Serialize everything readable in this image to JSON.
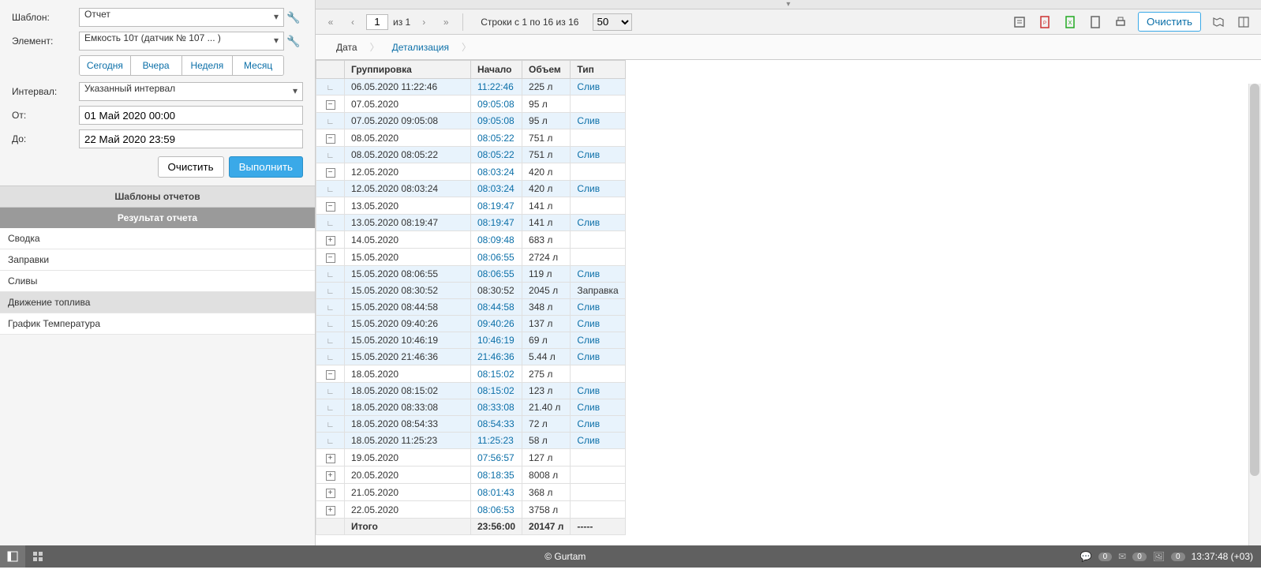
{
  "form": {
    "template_label": "Шаблон:",
    "template_value": "Отчет",
    "element_label": "Элемент:",
    "element_value": "Емкость 10т (датчик № 107 ... )",
    "quick_today": "Сегодня",
    "quick_yesterday": "Вчера",
    "quick_week": "Неделя",
    "quick_month": "Месяц",
    "interval_label": "Интервал:",
    "interval_value": "Указанный интервал",
    "from_label": "От:",
    "from_value": "01 Май 2020 00:00",
    "to_label": "До:",
    "to_value": "22 Май 2020 23:59",
    "clear": "Очистить",
    "execute": "Выполнить"
  },
  "sections": {
    "templates": "Шаблоны отчетов",
    "result": "Результат отчета"
  },
  "result_items": [
    {
      "label": "Сводка"
    },
    {
      "label": "Заправки"
    },
    {
      "label": "Сливы"
    },
    {
      "label": "Движение топлива"
    },
    {
      "label": "График Температура"
    }
  ],
  "toolbar": {
    "page": "1",
    "of": "из 1",
    "rows_info": "Строки с 1 по 16 из 16",
    "per_page": "50",
    "clear": "Очистить"
  },
  "tabs": {
    "date": "Дата",
    "detail": "Детализация"
  },
  "table": {
    "headers": {
      "group": "Группировка",
      "start": "Начало",
      "volume": "Объем",
      "type": "Тип"
    },
    "rows": [
      {
        "tree": "leaf",
        "h": true,
        "group": "06.05.2020 11:22:46",
        "start": "11:22:46",
        "link": true,
        "vol": "225 л",
        "type": "Слив",
        "tlink": true
      },
      {
        "tree": "minus",
        "h": false,
        "group": "07.05.2020",
        "start": "09:05:08",
        "link": true,
        "vol": "95 л",
        "type": "",
        "tlink": false
      },
      {
        "tree": "leaf",
        "h": true,
        "group": "07.05.2020 09:05:08",
        "start": "09:05:08",
        "link": true,
        "vol": "95 л",
        "type": "Слив",
        "tlink": true
      },
      {
        "tree": "minus",
        "h": false,
        "group": "08.05.2020",
        "start": "08:05:22",
        "link": true,
        "vol": "751 л",
        "type": "",
        "tlink": false
      },
      {
        "tree": "leaf",
        "h": true,
        "group": "08.05.2020 08:05:22",
        "start": "08:05:22",
        "link": true,
        "vol": "751 л",
        "type": "Слив",
        "tlink": true
      },
      {
        "tree": "minus",
        "h": false,
        "group": "12.05.2020",
        "start": "08:03:24",
        "link": true,
        "vol": "420 л",
        "type": "",
        "tlink": false
      },
      {
        "tree": "leaf",
        "h": true,
        "group": "12.05.2020 08:03:24",
        "start": "08:03:24",
        "link": true,
        "vol": "420 л",
        "type": "Слив",
        "tlink": true
      },
      {
        "tree": "minus",
        "h": false,
        "group": "13.05.2020",
        "start": "08:19:47",
        "link": true,
        "vol": "141 л",
        "type": "",
        "tlink": false
      },
      {
        "tree": "leaf",
        "h": true,
        "group": "13.05.2020 08:19:47",
        "start": "08:19:47",
        "link": true,
        "vol": "141 л",
        "type": "Слив",
        "tlink": true
      },
      {
        "tree": "plus",
        "h": false,
        "group": "14.05.2020",
        "start": "08:09:48",
        "link": true,
        "vol": "683 л",
        "type": "",
        "tlink": false
      },
      {
        "tree": "minus",
        "h": false,
        "group": "15.05.2020",
        "start": "08:06:55",
        "link": true,
        "vol": "2724 л",
        "type": "",
        "tlink": false
      },
      {
        "tree": "leaf",
        "h": true,
        "group": "15.05.2020 08:06:55",
        "start": "08:06:55",
        "link": true,
        "vol": "119 л",
        "type": "Слив",
        "tlink": true
      },
      {
        "tree": "leaf",
        "h": true,
        "group": "15.05.2020 08:30:52",
        "start": "08:30:52",
        "link": false,
        "vol": "2045 л",
        "type": "Заправка",
        "tlink": false
      },
      {
        "tree": "leaf",
        "h": true,
        "group": "15.05.2020 08:44:58",
        "start": "08:44:58",
        "link": true,
        "vol": "348 л",
        "type": "Слив",
        "tlink": true
      },
      {
        "tree": "leaf",
        "h": true,
        "group": "15.05.2020 09:40:26",
        "start": "09:40:26",
        "link": true,
        "vol": "137 л",
        "type": "Слив",
        "tlink": true
      },
      {
        "tree": "leaf",
        "h": true,
        "group": "15.05.2020 10:46:19",
        "start": "10:46:19",
        "link": true,
        "vol": "69 л",
        "type": "Слив",
        "tlink": true
      },
      {
        "tree": "leaf",
        "h": true,
        "group": "15.05.2020 21:46:36",
        "start": "21:46:36",
        "link": true,
        "vol": "5.44 л",
        "type": "Слив",
        "tlink": true
      },
      {
        "tree": "minus",
        "h": false,
        "group": "18.05.2020",
        "start": "08:15:02",
        "link": true,
        "vol": "275 л",
        "type": "",
        "tlink": false
      },
      {
        "tree": "leaf",
        "h": true,
        "group": "18.05.2020 08:15:02",
        "start": "08:15:02",
        "link": true,
        "vol": "123 л",
        "type": "Слив",
        "tlink": true
      },
      {
        "tree": "leaf",
        "h": true,
        "group": "18.05.2020 08:33:08",
        "start": "08:33:08",
        "link": true,
        "vol": "21.40 л",
        "type": "Слив",
        "tlink": true
      },
      {
        "tree": "leaf",
        "h": true,
        "group": "18.05.2020 08:54:33",
        "start": "08:54:33",
        "link": true,
        "vol": "72 л",
        "type": "Слив",
        "tlink": true
      },
      {
        "tree": "leaf",
        "h": true,
        "group": "18.05.2020 11:25:23",
        "start": "11:25:23",
        "link": true,
        "vol": "58 л",
        "type": "Слив",
        "tlink": true
      },
      {
        "tree": "plus",
        "h": false,
        "group": "19.05.2020",
        "start": "07:56:57",
        "link": true,
        "vol": "127 л",
        "type": "",
        "tlink": false
      },
      {
        "tree": "plus",
        "h": false,
        "group": "20.05.2020",
        "start": "08:18:35",
        "link": true,
        "vol": "8008 л",
        "type": "",
        "tlink": false
      },
      {
        "tree": "plus",
        "h": false,
        "group": "21.05.2020",
        "start": "08:01:43",
        "link": true,
        "vol": "368 л",
        "type": "",
        "tlink": false
      },
      {
        "tree": "plus",
        "h": false,
        "group": "22.05.2020",
        "start": "08:06:53",
        "link": true,
        "vol": "3758 л",
        "type": "",
        "tlink": false
      }
    ],
    "footer": {
      "label": "Итого",
      "start": "23:56:00",
      "vol": "20147 л",
      "type": "-----"
    }
  },
  "bottom": {
    "copyright": "© Gurtam",
    "badge1": "0",
    "badge2": "0",
    "badge3": "0",
    "time": "13:37:48 (+03)"
  },
  "colors": {
    "primary": "#3aa9e8",
    "link": "#0b6fa8",
    "highlight": "#e8f3fc"
  }
}
